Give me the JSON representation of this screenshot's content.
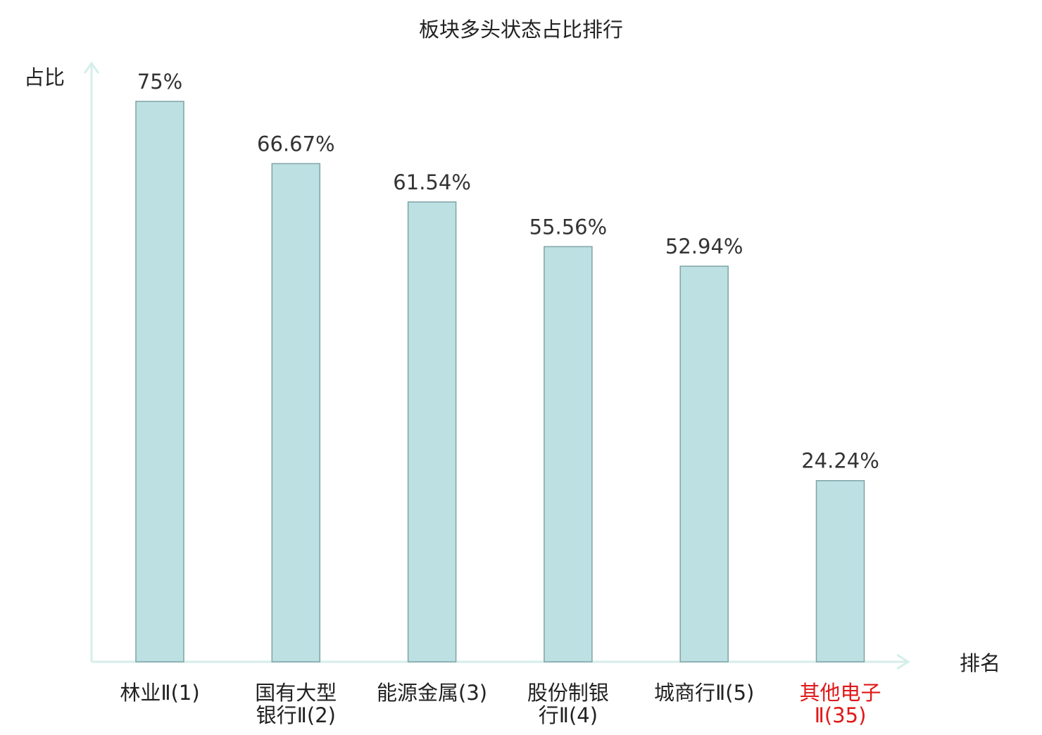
{
  "chart_data": {
    "type": "bar",
    "title": "板块多头状态占比排行",
    "ylabel": "占比",
    "xlabel": "排名",
    "categories": [
      {
        "label": [
          "林业Ⅱ(1)"
        ],
        "highlight": false
      },
      {
        "label": [
          "国有大型",
          "银行Ⅱ(2)"
        ],
        "highlight": false
      },
      {
        "label": [
          "能源金属(3)"
        ],
        "highlight": false
      },
      {
        "label": [
          "股份制银",
          "行Ⅱ(4)"
        ],
        "highlight": false
      },
      {
        "label": [
          "城商行Ⅱ(5)"
        ],
        "highlight": false
      },
      {
        "label": [
          "其他电子",
          "Ⅱ(35)"
        ],
        "highlight": true
      }
    ],
    "values": [
      75,
      66.67,
      61.54,
      55.56,
      52.94,
      24.24
    ],
    "value_labels": [
      "75%",
      "66.67%",
      "61.54%",
      "55.56%",
      "52.94%",
      "24.24%"
    ],
    "ylim": [
      0,
      80
    ],
    "grid": false,
    "colors": {
      "bar_fill": "#bde0e3",
      "bar_stroke": "#7fa3a6",
      "axis": "#d5eeea",
      "text": "#333333",
      "highlight_text": "#e01818"
    }
  }
}
